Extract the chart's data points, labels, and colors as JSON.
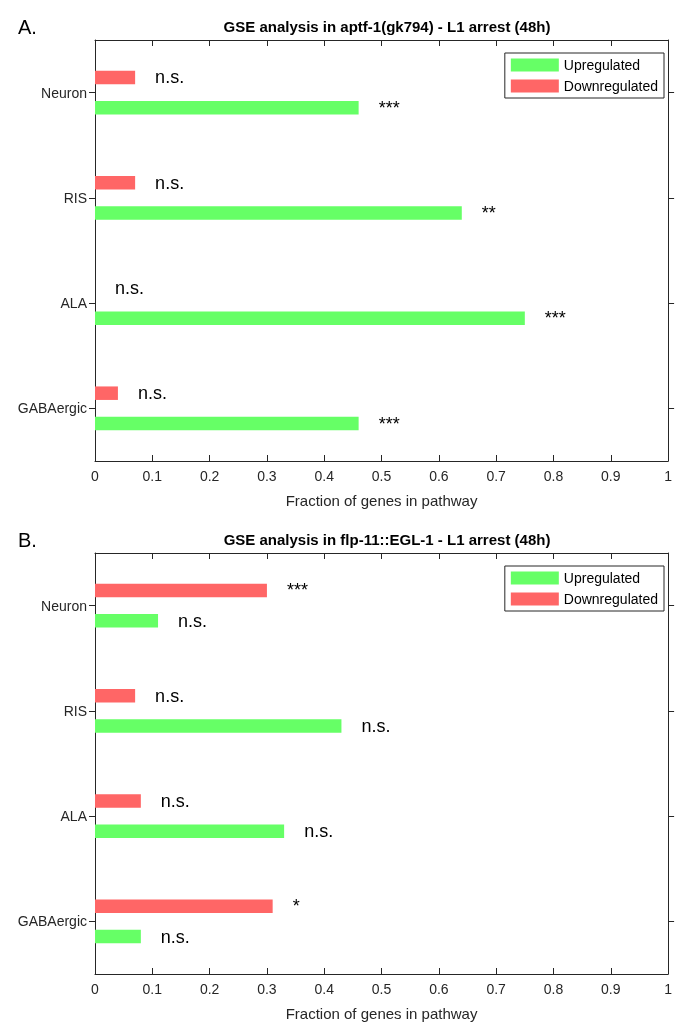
{
  "chart_data": [
    {
      "type": "bar",
      "orientation": "horizontal",
      "title": "GSE analysis in aptf-1(gk794) - L1 arrest (48h)",
      "xlabel": "Fraction of genes in pathway",
      "categories": [
        "Neuron",
        "RIS",
        "ALA",
        "GABAergic"
      ],
      "series": [
        {
          "name": "Upregulated",
          "color": "#66ff66",
          "values": [
            0.46,
            0.64,
            0.75,
            0.46
          ],
          "value_labels": [
            "***",
            "**",
            "***",
            "***"
          ]
        },
        {
          "name": "Downregulated",
          "color": "#ff6666",
          "values": [
            0.07,
            0.07,
            0,
            0.04
          ],
          "value_labels": [
            "n.s.",
            "n.s.",
            "n.s.",
            "n.s."
          ]
        }
      ],
      "xlim": [
        0,
        1
      ],
      "xticks": [
        0,
        0.1,
        0.2,
        0.3,
        0.4,
        0.5,
        0.6,
        0.7,
        0.8,
        0.9,
        1
      ],
      "legend": "top right",
      "grid": false,
      "annotations": [
        "A."
      ]
    },
    {
      "type": "bar",
      "orientation": "horizontal",
      "title": "GSE analysis in flp-11::EGL-1 - L1 arrest (48h)",
      "xlabel": "Fraction of genes in pathway",
      "categories": [
        "Neuron",
        "RIS",
        "ALA",
        "GABAergic"
      ],
      "series": [
        {
          "name": "Upregulated",
          "color": "#66ff66",
          "values": [
            0.11,
            0.43,
            0.33,
            0.08
          ],
          "value_labels": [
            "n.s.",
            "n.s.",
            "n.s.",
            "n.s."
          ]
        },
        {
          "name": "Downregulated",
          "color": "#ff6666",
          "values": [
            0.3,
            0.07,
            0.08,
            0.31
          ],
          "value_labels": [
            "***",
            "n.s.",
            "n.s.",
            "*"
          ]
        }
      ],
      "xlim": [
        0,
        1
      ],
      "xticks": [
        0,
        0.1,
        0.2,
        0.3,
        0.4,
        0.5,
        0.6,
        0.7,
        0.8,
        0.9,
        1
      ],
      "legend": "top right",
      "grid": false,
      "annotations": [
        "B."
      ]
    }
  ]
}
